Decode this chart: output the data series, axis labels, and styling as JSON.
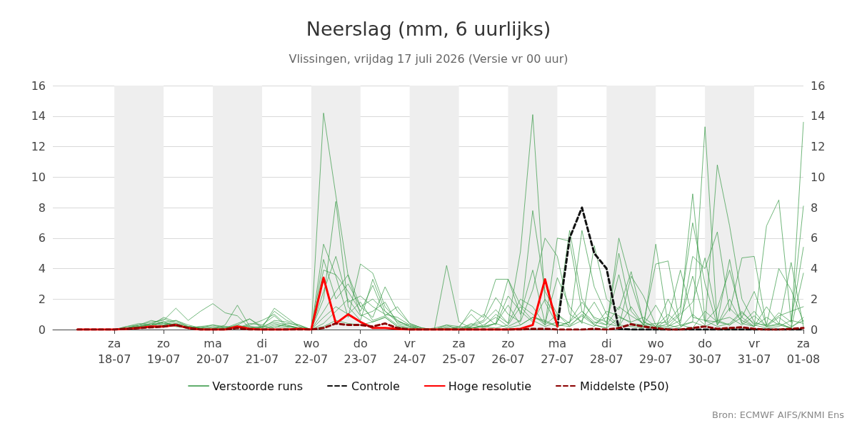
{
  "chart_data": {
    "type": "line",
    "title": "Neerslag (mm, 6 uurlijks)",
    "subtitle": "Vlissingen, vrijdag 17 juli 2026 (Versie vr 00 uur)",
    "annotations": [
      "Bron: ECMWF AIFS/KNMI Ens"
    ],
    "x": [
      "2026-07-17T06:00",
      "2026-07-17T12:00",
      "2026-07-17T18:00",
      "2026-07-18T00:00",
      "2026-07-18T06:00",
      "2026-07-18T12:00",
      "2026-07-18T18:00",
      "2026-07-19T00:00",
      "2026-07-19T06:00",
      "2026-07-19T12:00",
      "2026-07-19T18:00",
      "2026-07-20T00:00",
      "2026-07-20T06:00",
      "2026-07-20T12:00",
      "2026-07-20T18:00",
      "2026-07-21T00:00",
      "2026-07-21T06:00",
      "2026-07-21T12:00",
      "2026-07-21T18:00",
      "2026-07-22T00:00",
      "2026-07-22T06:00",
      "2026-07-22T12:00",
      "2026-07-22T18:00",
      "2026-07-23T00:00",
      "2026-07-23T06:00",
      "2026-07-23T12:00",
      "2026-07-23T18:00",
      "2026-07-24T00:00",
      "2026-07-24T06:00",
      "2026-07-24T12:00",
      "2026-07-24T18:00",
      "2026-07-25T00:00",
      "2026-07-25T06:00",
      "2026-07-25T12:00",
      "2026-07-25T18:00",
      "2026-07-26T00:00",
      "2026-07-26T06:00",
      "2026-07-26T12:00",
      "2026-07-26T18:00",
      "2026-07-27T00:00",
      "2026-07-27T06:00",
      "2026-07-27T12:00",
      "2026-07-27T18:00",
      "2026-07-28T00:00",
      "2026-07-28T06:00",
      "2026-07-28T12:00",
      "2026-07-28T18:00",
      "2026-07-29T00:00",
      "2026-07-29T06:00",
      "2026-07-29T12:00",
      "2026-07-29T18:00",
      "2026-07-30T00:00",
      "2026-07-30T06:00",
      "2026-07-30T12:00",
      "2026-07-30T18:00",
      "2026-07-31T00:00",
      "2026-07-31T06:00",
      "2026-07-31T12:00",
      "2026-07-31T18:00",
      "2026-08-01T00:00"
    ],
    "series": [
      {
        "name": "Verstoorde runs",
        "color": "#3a9a48",
        "line_style": "solid",
        "values": [
          null,
          null,
          0,
          0,
          0.1,
          0.3,
          0.5,
          0.6,
          1.4,
          0.6,
          1.2,
          1.7,
          1.1,
          0.9,
          0.1,
          0.2,
          0.1,
          0.4,
          0.3,
          0,
          14.2,
          8.8,
          3.5,
          1.0,
          0.5,
          0.8,
          0.2,
          0,
          0,
          0.1,
          0.3,
          0,
          0.1,
          0.2,
          0.4,
          0.1,
          0.3,
          0.8,
          0.5,
          0.2,
          0.5,
          1.2,
          0.3,
          0.1,
          6.0,
          3.0,
          0.5,
          0.2,
          1.0,
          0.3,
          0.1,
          1.2,
          0.5,
          0.3,
          0.8,
          0.2,
          1.5,
          0.4,
          0.1,
          3.7
        ]
      },
      {
        "color": "#3a9a48",
        "line_style": "solid",
        "values": [
          null,
          null,
          0,
          0,
          0.2,
          0.4,
          0.3,
          0.8,
          0.5,
          0.2,
          0.1,
          0,
          0,
          0.3,
          0.7,
          0.1,
          1.4,
          0.8,
          0.2,
          0,
          2.0,
          8.4,
          1.5,
          0.6,
          3.3,
          1.2,
          0.5,
          0.3,
          0,
          0,
          0.1,
          0,
          0.2,
          0.5,
          1.3,
          0.4,
          5.1,
          14.1,
          1.8,
          0.3,
          0.2,
          0.6,
          1.8,
          0.4,
          0.2,
          1.5,
          0.3,
          0.1,
          0.4,
          1.1,
          8.9,
          0.6,
          0.2,
          0.4,
          1.2,
          0.3,
          0.1,
          0.2,
          0.6,
          0.4
        ]
      },
      {
        "color": "#3a9a48",
        "line_style": "solid",
        "values": [
          null,
          null,
          0,
          0,
          0.1,
          0.2,
          0.4,
          0.3,
          0.6,
          0.2,
          0.1,
          0,
          0.3,
          1.6,
          0.2,
          0.1,
          0.4,
          0.2,
          0.1,
          0,
          5.6,
          3.5,
          0.8,
          4.3,
          3.7,
          1.5,
          0.6,
          0.2,
          0,
          0,
          0,
          0.2,
          0.1,
          0.2,
          0.4,
          3.3,
          1.6,
          1.0,
          0.3,
          6.0,
          5.8,
          1.2,
          0.5,
          0.3,
          1.5,
          0.9,
          0.4,
          4.3,
          4.5,
          0.2,
          0.5,
          13.3,
          0.3,
          1.4,
          0.6,
          0.2,
          0.8,
          0.3,
          0.1,
          13.6
        ]
      },
      {
        "color": "#3a9a48",
        "line_style": "solid",
        "values": [
          null,
          null,
          0,
          0,
          0.2,
          0.3,
          0.6,
          0.4,
          0.3,
          0.1,
          0,
          0.1,
          0.2,
          0.1,
          0.3,
          0.6,
          1.0,
          0.3,
          0.1,
          0,
          4.6,
          2.0,
          3.0,
          1.5,
          0.8,
          2.8,
          1.2,
          0.4,
          0.1,
          0,
          4.2,
          0.5,
          0.1,
          0.3,
          0.8,
          0.2,
          0.6,
          7.8,
          2.5,
          1.0,
          0.4,
          6.5,
          2.8,
          1.0,
          0.3,
          0.2,
          0.1,
          5.6,
          0.3,
          0.1,
          1.0,
          0.3,
          10.8,
          6.8,
          2.0,
          0.5,
          0.2,
          0.8,
          0.2,
          0.6
        ]
      },
      {
        "color": "#3a9a48",
        "line_style": "solid",
        "values": [
          null,
          null,
          0,
          0,
          0.1,
          0.2,
          0.3,
          0.5,
          0.2,
          0.1,
          0.2,
          0.3,
          0.1,
          0.2,
          0.2,
          0.1,
          0.6,
          0.5,
          0.2,
          0,
          3.9,
          3.6,
          2.5,
          1.2,
          2.9,
          0.9,
          1.5,
          0.4,
          0.1,
          0,
          0.2,
          0.1,
          1.3,
          0.8,
          3.3,
          3.3,
          1.0,
          3.9,
          0.4,
          3.4,
          1.5,
          0.4,
          5.5,
          2.0,
          1.3,
          3.8,
          0.5,
          0.1,
          2.0,
          0.4,
          4.8,
          4.0,
          6.4,
          1.2,
          4.7,
          4.8,
          0.2,
          1.1,
          0.5,
          5.4
        ]
      },
      {
        "color": "#3a9a48",
        "line_style": "solid",
        "values": [
          null,
          null,
          0,
          0,
          0.1,
          0.2,
          0.4,
          0.7,
          0.4,
          0.2,
          0.1,
          0.2,
          0.1,
          0.4,
          0.7,
          0.2,
          1.2,
          0.6,
          0.3,
          0,
          2.5,
          4.8,
          1.8,
          2.2,
          1.5,
          1.0,
          0.8,
          0.3,
          0.1,
          0,
          0.1,
          0,
          0.2,
          1.0,
          0.3,
          2.2,
          1.2,
          0.5,
          2.0,
          0.8,
          6.5,
          2.0,
          0.7,
          0.3,
          5.0,
          1.2,
          0.3,
          0.4,
          0.5,
          1.5,
          7.0,
          3.0,
          0.3,
          2.0,
          0.4,
          0.2,
          6.8,
          8.5,
          0.5,
          8.1
        ]
      },
      {
        "color": "#3a9a48",
        "line_style": "solid",
        "values": [
          null,
          null,
          0,
          0,
          0.05,
          0.2,
          0.3,
          0.5,
          0.6,
          0.3,
          0.1,
          0.3,
          0.2,
          0.1,
          0.4,
          0.3,
          0.9,
          0.2,
          0.1,
          0,
          1.2,
          2.5,
          3.6,
          1.5,
          2.0,
          1.2,
          0.6,
          0.2,
          0,
          0,
          0.3,
          0.2,
          1.0,
          0.2,
          1.0,
          0.4,
          2.0,
          1.5,
          0.3,
          1.0,
          0.2,
          1.0,
          0.4,
          0.8,
          0.2,
          3.5,
          2.2,
          0.3,
          0.2,
          0.6,
          3.5,
          0.5,
          1.4,
          3.9,
          0.8,
          2.5,
          0.3,
          4.0,
          2.6,
          0.5
        ]
      },
      {
        "color": "#3a9a48",
        "line_style": "solid",
        "values": [
          null,
          null,
          0,
          0,
          0.1,
          0.3,
          0.2,
          0.5,
          0.3,
          0.1,
          0,
          0,
          0.1,
          0.2,
          0.1,
          0,
          0.3,
          0.2,
          0.1,
          0,
          0.8,
          1.5,
          1.0,
          1.8,
          0.6,
          0.9,
          0.3,
          0.1,
          0,
          0,
          0,
          0.1,
          0.3,
          0.6,
          2.1,
          1.0,
          0.5,
          2.6,
          6.0,
          4.8,
          1.0,
          0.5,
          0.2,
          1.2,
          0.9,
          0.4,
          0.3,
          1.6,
          0.2,
          1.0,
          1.8,
          4.7,
          0.6,
          0.3,
          1.1,
          0.4,
          0.3,
          0.9,
          1.2,
          1.5
        ]
      },
      {
        "color": "#3a9a48",
        "line_style": "solid",
        "values": [
          null,
          null,
          0,
          0,
          0.1,
          0.2,
          0.3,
          0.4,
          0.2,
          0.2,
          0.1,
          0,
          0.1,
          0.3,
          0.1,
          0.2,
          0.5,
          0.3,
          0.1,
          0,
          0.4,
          1.2,
          2.0,
          0.9,
          1.2,
          1.8,
          0.4,
          0.2,
          0,
          0,
          0,
          0,
          0.4,
          0.1,
          0.4,
          1.6,
          0.3,
          0.8,
          0.6,
          0.2,
          0.5,
          1.8,
          0.8,
          0.5,
          3.6,
          0.3,
          0.2,
          0.1,
          0.7,
          3.9,
          0.8,
          0.6,
          0.5,
          4.6,
          0.4,
          1.2,
          0.2,
          0.3,
          4.4,
          0.2
        ]
      },
      {
        "color": "#3a9a48",
        "line_style": "solid",
        "values": [
          null,
          null,
          0,
          0,
          0.05,
          0.1,
          0.2,
          0.3,
          0.4,
          0.1,
          0.2,
          0.1,
          0,
          0.1,
          0.1,
          0,
          0.2,
          0.1,
          0,
          0,
          0.2,
          0.6,
          0.4,
          0.3,
          0.5,
          0.8,
          0.2,
          0.1,
          0,
          0,
          0,
          0,
          0.1,
          0.2,
          0.1,
          0.3,
          1.5,
          0.6,
          0.2,
          0.5,
          0.3,
          0.9,
          0.3,
          0.1,
          0.8,
          0.5,
          0.8,
          0.2,
          0.1,
          0.3,
          0.5,
          0.2,
          0.6,
          0.8,
          0.3,
          0.9,
          0.2,
          0.4,
          0.1,
          0.8
        ]
      },
      {
        "name": "Controle",
        "color": "#111111",
        "line_style": "dashed",
        "values": [
          null,
          null,
          null,
          null,
          null,
          null,
          null,
          null,
          null,
          null,
          null,
          null,
          null,
          null,
          null,
          null,
          null,
          null,
          null,
          null,
          null,
          null,
          null,
          null,
          null,
          null,
          null,
          null,
          null,
          null,
          null,
          null,
          null,
          null,
          null,
          null,
          null,
          null,
          null,
          0.2,
          6.0,
          8.0,
          5.0,
          4.0,
          0.05,
          0,
          0,
          0,
          0,
          0,
          0,
          0,
          0,
          0,
          0,
          0,
          0,
          0,
          0,
          0
        ]
      },
      {
        "name": "Hoge resolutie",
        "color": "#ff0000",
        "line_style": "solid",
        "values": [
          0,
          0,
          0,
          0,
          0.05,
          0.1,
          0.2,
          0.2,
          0.3,
          0.1,
          0,
          0,
          0,
          0.2,
          0.05,
          0,
          0,
          0,
          0.05,
          0,
          3.4,
          0.4,
          1.0,
          0.5,
          0.1,
          0.1,
          0.05,
          0,
          0,
          0,
          0,
          0,
          0,
          0,
          0,
          0,
          0.05,
          0.3,
          3.3,
          0.2,
          null,
          null,
          null,
          null,
          null,
          null,
          null,
          null,
          null,
          null,
          null,
          null,
          null,
          null,
          null,
          null,
          null,
          null,
          null,
          null
        ]
      },
      {
        "name": "Middelste (P50)",
        "color": "#8b0000",
        "line_style": "dashed",
        "values": [
          0,
          0,
          0,
          0,
          0.05,
          0.1,
          0.15,
          0.2,
          0.3,
          0.1,
          0,
          0,
          0,
          0.1,
          0,
          0,
          0,
          0,
          0,
          0,
          0.1,
          0.4,
          0.3,
          0.3,
          0.2,
          0.4,
          0.1,
          0,
          0,
          0,
          0,
          0,
          0,
          0,
          0,
          0,
          0,
          0.05,
          0.05,
          0,
          0,
          0,
          0.05,
          0,
          0.1,
          0.35,
          0.2,
          0.1,
          0,
          0,
          0.1,
          0.2,
          0.05,
          0.1,
          0.15,
          0.05,
          0,
          0,
          0.05,
          0.1
        ]
      }
    ],
    "xlim": [
      "2026-07-16T18:00",
      "2026-08-01T00:00"
    ],
    "xticks": [
      {
        "value": "2026-07-18T00:00",
        "label": "za\n18-07"
      },
      {
        "value": "2026-07-19T00:00",
        "label": "zo\n19-07"
      },
      {
        "value": "2026-07-20T00:00",
        "label": "ma\n20-07"
      },
      {
        "value": "2026-07-21T00:00",
        "label": "di\n21-07"
      },
      {
        "value": "2026-07-22T00:00",
        "label": "wo\n22-07"
      },
      {
        "value": "2026-07-23T00:00",
        "label": "do\n23-07"
      },
      {
        "value": "2026-07-24T00:00",
        "label": "vr\n24-07"
      },
      {
        "value": "2026-07-25T00:00",
        "label": "za\n25-07"
      },
      {
        "value": "2026-07-26T00:00",
        "label": "zo\n26-07"
      },
      {
        "value": "2026-07-27T00:00",
        "label": "ma\n27-07"
      },
      {
        "value": "2026-07-28T00:00",
        "label": "di\n28-07"
      },
      {
        "value": "2026-07-29T00:00",
        "label": "wo\n29-07"
      },
      {
        "value": "2026-07-30T00:00",
        "label": "do\n30-07"
      },
      {
        "value": "2026-07-31T00:00",
        "label": "vr\n31-07"
      },
      {
        "value": "2026-08-01T00:00",
        "label": "za\n01-08"
      }
    ],
    "ylim": [
      0,
      16
    ],
    "yticks": [
      0,
      2,
      4,
      6,
      8,
      10,
      12,
      14,
      16
    ],
    "y2lim": [
      0,
      16
    ],
    "y2ticks": [
      0,
      2,
      4,
      6,
      8,
      10,
      12,
      14,
      16
    ],
    "bands": [
      {
        "axis": "x",
        "from": "2026-07-18T00:00",
        "to": "2026-07-19T00:00",
        "color": "#eeeeee"
      },
      {
        "axis": "x",
        "from": "2026-07-20T00:00",
        "to": "2026-07-21T00:00",
        "color": "#eeeeee"
      },
      {
        "axis": "x",
        "from": "2026-07-22T00:00",
        "to": "2026-07-23T00:00",
        "color": "#eeeeee"
      },
      {
        "axis": "x",
        "from": "2026-07-24T00:00",
        "to": "2026-07-25T00:00",
        "color": "#eeeeee"
      },
      {
        "axis": "x",
        "from": "2026-07-26T00:00",
        "to": "2026-07-27T00:00",
        "color": "#eeeeee"
      },
      {
        "axis": "x",
        "from": "2026-07-28T00:00",
        "to": "2026-07-29T00:00",
        "color": "#eeeeee"
      },
      {
        "axis": "x",
        "from": "2026-07-30T00:00",
        "to": "2026-07-31T00:00",
        "color": "#eeeeee"
      }
    ],
    "grid": "y",
    "legend": "bottom",
    "marker": "none"
  }
}
